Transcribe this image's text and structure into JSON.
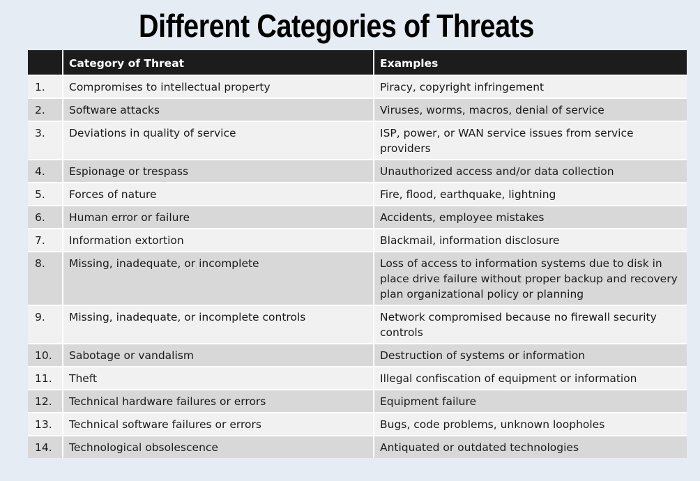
{
  "title": "Different Categories of Threats",
  "table": {
    "headers": [
      "",
      "Category of Threat",
      "Examples"
    ],
    "rows": [
      {
        "num": "1.",
        "category": "Compromises to intellectual property",
        "examples": "Piracy, copyright infringement"
      },
      {
        "num": "2.",
        "category": "Software attacks",
        "examples": "Viruses, worms, macros, denial of service"
      },
      {
        "num": "3.",
        "category": "Deviations in quality of service",
        "examples": "ISP, power, or WAN service issues from service providers"
      },
      {
        "num": "4.",
        "category": "Espionage or trespass",
        "examples": "Unauthorized access and/or data collection"
      },
      {
        "num": "5.",
        "category": "Forces of nature",
        "examples": "Fire, flood, earthquake, lightning"
      },
      {
        "num": "6.",
        "category": "Human error or failure",
        "examples": "Accidents, employee mistakes"
      },
      {
        "num": "7.",
        "category": "Information extortion",
        "examples": "Blackmail, information disclosure"
      },
      {
        "num": "8.",
        "category": "Missing, inadequate, or incomplete",
        "examples": "Loss of access to information systems due to disk in place drive failure without proper backup and recovery plan organizational policy or planning"
      },
      {
        "num": "9.",
        "category": "Missing, inadequate, or incomplete controls",
        "examples": "Network compromised because no firewall security controls"
      },
      {
        "num": "10.",
        "category": "Sabotage or vandalism",
        "examples": "Destruction of systems or information"
      },
      {
        "num": "11.",
        "category": "Theft",
        "examples": "Illegal confiscation of equipment or information"
      },
      {
        "num": "12.",
        "category": "Technical hardware failures or errors",
        "examples": "Equipment failure"
      },
      {
        "num": "13.",
        "category": "Technical software failures or errors",
        "examples": "Bugs, code problems, unknown loopholes"
      },
      {
        "num": "14.",
        "category": "Technological obsolescence",
        "examples": "Antiquated or outdated technologies"
      }
    ]
  }
}
